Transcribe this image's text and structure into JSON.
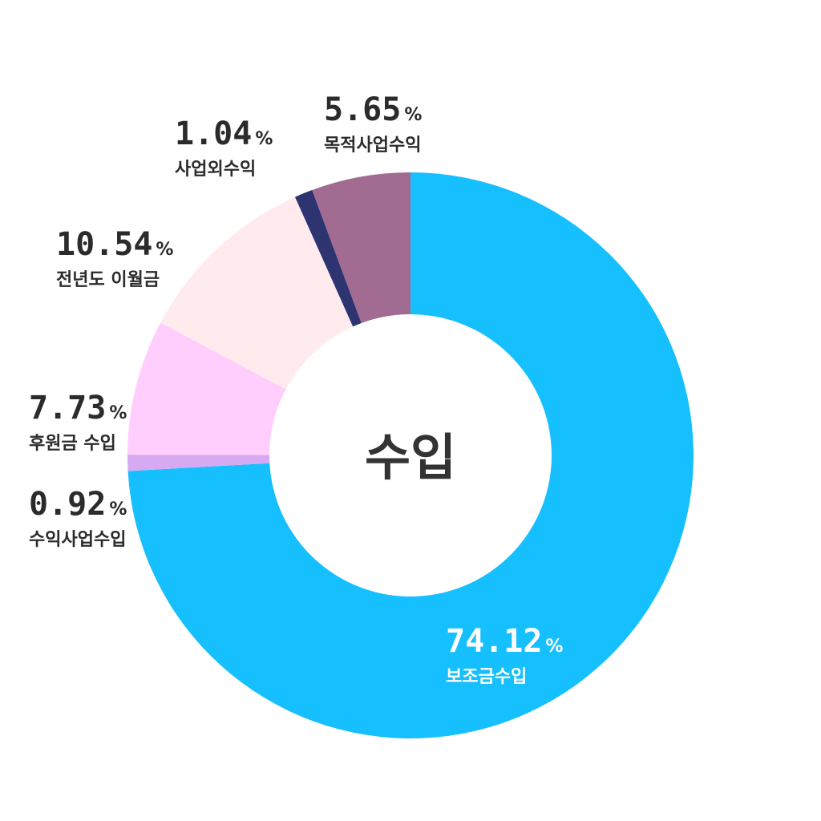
{
  "chart_data": {
    "type": "pie",
    "style": "donut",
    "center_label": "수입",
    "unit": "%",
    "slices": [
      {
        "label": "보조금수입",
        "value": 74.12,
        "value_text": "74.12",
        "color": "#16BFFD",
        "text_color": "#FFFFFF"
      },
      {
        "label": "수익사업수입",
        "value": 0.92,
        "value_text": "0.92",
        "color": "#D7A9F3",
        "text_color": "#2B2B2B"
      },
      {
        "label": "후원금 수입",
        "value": 7.73,
        "value_text": "7.73",
        "color": "#FFCEFC",
        "text_color": "#2B2B2B"
      },
      {
        "label": "전년도 이월금",
        "value": 10.54,
        "value_text": "10.54",
        "color": "#FFEBEE",
        "text_color": "#2B2B2B"
      },
      {
        "label": "사업외수익",
        "value": 1.04,
        "value_text": "1.04",
        "color": "#2D3470",
        "text_color": "#2B2B2B"
      },
      {
        "label": "목적사업수익",
        "value": 5.65,
        "value_text": "5.65",
        "color": "#A16B92",
        "text_color": "#2B2B2B"
      }
    ]
  }
}
